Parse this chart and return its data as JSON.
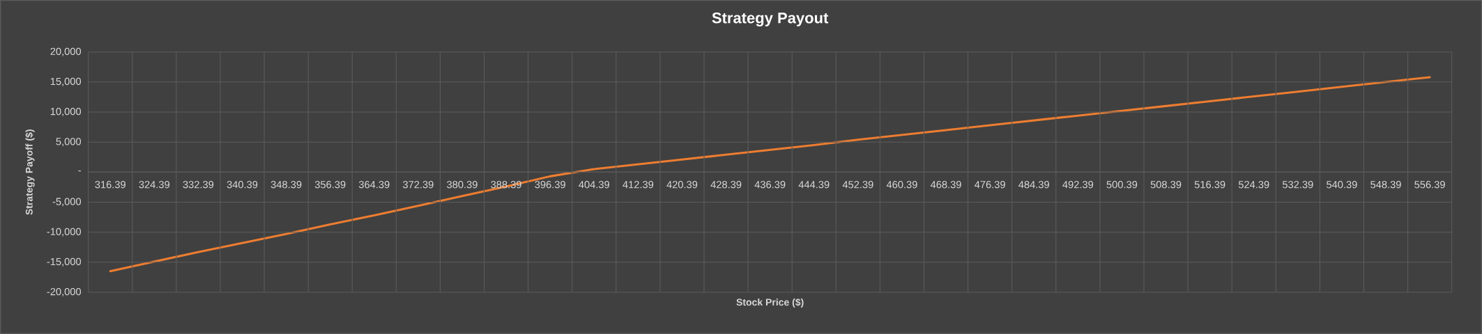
{
  "chart_data": {
    "type": "line",
    "title": "Strategy Payout",
    "xlabel": "Stock Price ($)",
    "ylabel": "Strategy Payoff ($)",
    "categories": [
      "316.39",
      "324.39",
      "332.39",
      "340.39",
      "348.39",
      "356.39",
      "364.39",
      "372.39",
      "380.39",
      "388.39",
      "396.39",
      "404.39",
      "412.39",
      "420.39",
      "428.39",
      "436.39",
      "444.39",
      "452.39",
      "460.39",
      "468.39",
      "476.39",
      "484.39",
      "492.39",
      "500.39",
      "508.39",
      "516.39",
      "524.39",
      "532.39",
      "540.39",
      "548.39",
      "556.39"
    ],
    "series": [
      {
        "color": "#ed7d31",
        "values": [
          -16500,
          -14900,
          -13300,
          -11800,
          -10300,
          -8700,
          -7200,
          -5600,
          -4000,
          -2400,
          -700,
          500,
          1300,
          2100,
          2900,
          3700,
          4500,
          5400,
          6200,
          7000,
          7800,
          8600,
          9400,
          10200,
          11000,
          11800,
          12600,
          13400,
          14200,
          15000,
          15800
        ]
      }
    ],
    "ylim": [
      -20000,
      20000
    ],
    "yticks": [
      {
        "value": -20000,
        "label": "-20,000"
      },
      {
        "value": -15000,
        "label": "-15,000"
      },
      {
        "value": -10000,
        "label": "-10,000"
      },
      {
        "value": -5000,
        "label": "-5,000"
      },
      {
        "value": 0,
        "label": "-"
      },
      {
        "value": 5000,
        "label": "5,000"
      },
      {
        "value": 10000,
        "label": "10,000"
      },
      {
        "value": 15000,
        "label": "15,000"
      },
      {
        "value": 20000,
        "label": "20,000"
      }
    ],
    "grid": true,
    "marker": "none",
    "line_style": "solid"
  }
}
